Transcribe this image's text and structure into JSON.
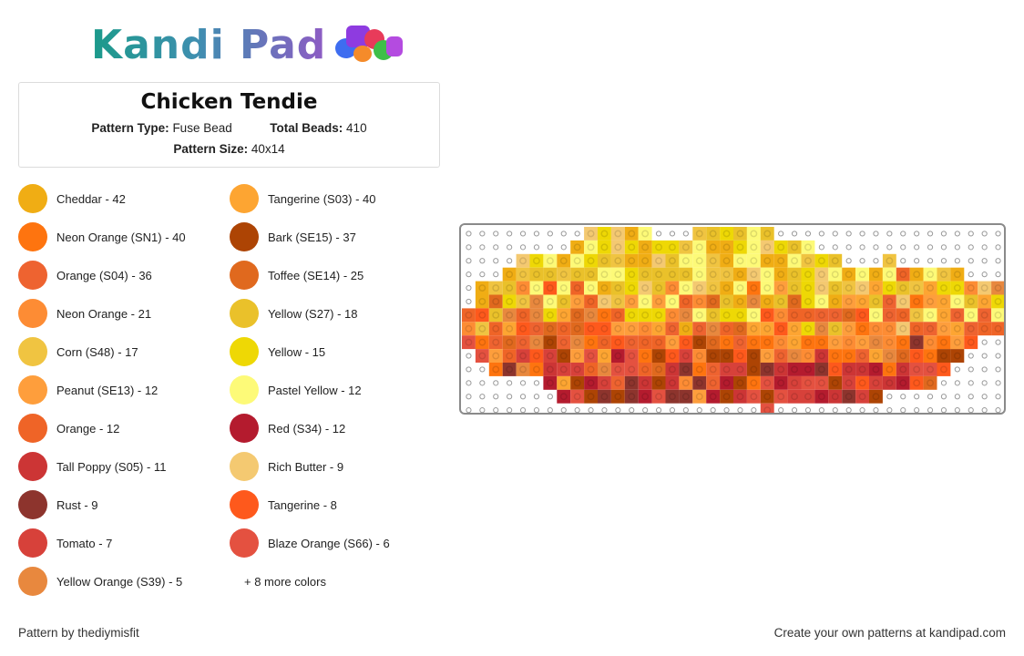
{
  "brand": {
    "name": "Kandi Pad"
  },
  "pattern": {
    "title": "Chicken Tendie",
    "type_label": "Pattern Type:",
    "type_value": "Fuse Bead",
    "beads_label": "Total Beads:",
    "beads_value": "410",
    "size_label": "Pattern Size:",
    "size_value": "40x14"
  },
  "legend": [
    {
      "label": "Cheddar - 42",
      "color": "#f0ad14"
    },
    {
      "label": "Tangerine (S03) - 40",
      "color": "#fda532"
    },
    {
      "label": "Neon Orange (SN1) - 40",
      "color": "#fe740f"
    },
    {
      "label": "Bark (SE15) - 37",
      "color": "#ad4404"
    },
    {
      "label": "Orange (S04) - 36",
      "color": "#ee6330"
    },
    {
      "label": "Toffee (SE14) - 25",
      "color": "#e0691e"
    },
    {
      "label": "Neon Orange - 21",
      "color": "#fd8c34"
    },
    {
      "label": "Yellow (S27) - 18",
      "color": "#eac12a"
    },
    {
      "label": "Corn (S48) - 17",
      "color": "#f0c441"
    },
    {
      "label": "Yellow - 15",
      "color": "#eed805"
    },
    {
      "label": "Peanut (SE13) - 12",
      "color": "#fe9e3c"
    },
    {
      "label": "Pastel Yellow - 12",
      "color": "#fdfa78"
    },
    {
      "label": "Orange - 12",
      "color": "#ef6427"
    },
    {
      "label": "Red (S34) - 12",
      "color": "#b41b2e"
    },
    {
      "label": "Tall Poppy (S05) - 11",
      "color": "#cc3535"
    },
    {
      "label": "Rich Butter - 9",
      "color": "#f4c971"
    },
    {
      "label": "Rust - 9",
      "color": "#8d342d"
    },
    {
      "label": "Tangerine - 8",
      "color": "#fe591c"
    },
    {
      "label": "Tomato - 7",
      "color": "#d7413a"
    },
    {
      "label": "Blaze Orange (S66) - 6",
      "color": "#e45140"
    },
    {
      "label": "Yellow Orange (S39) - 5",
      "color": "#e8883e"
    }
  ],
  "more_colors": "+ 8 more colors",
  "footer": {
    "credit": "Pattern by thediymisfit",
    "cta": "Create your own patterns at kandipad.com"
  }
}
